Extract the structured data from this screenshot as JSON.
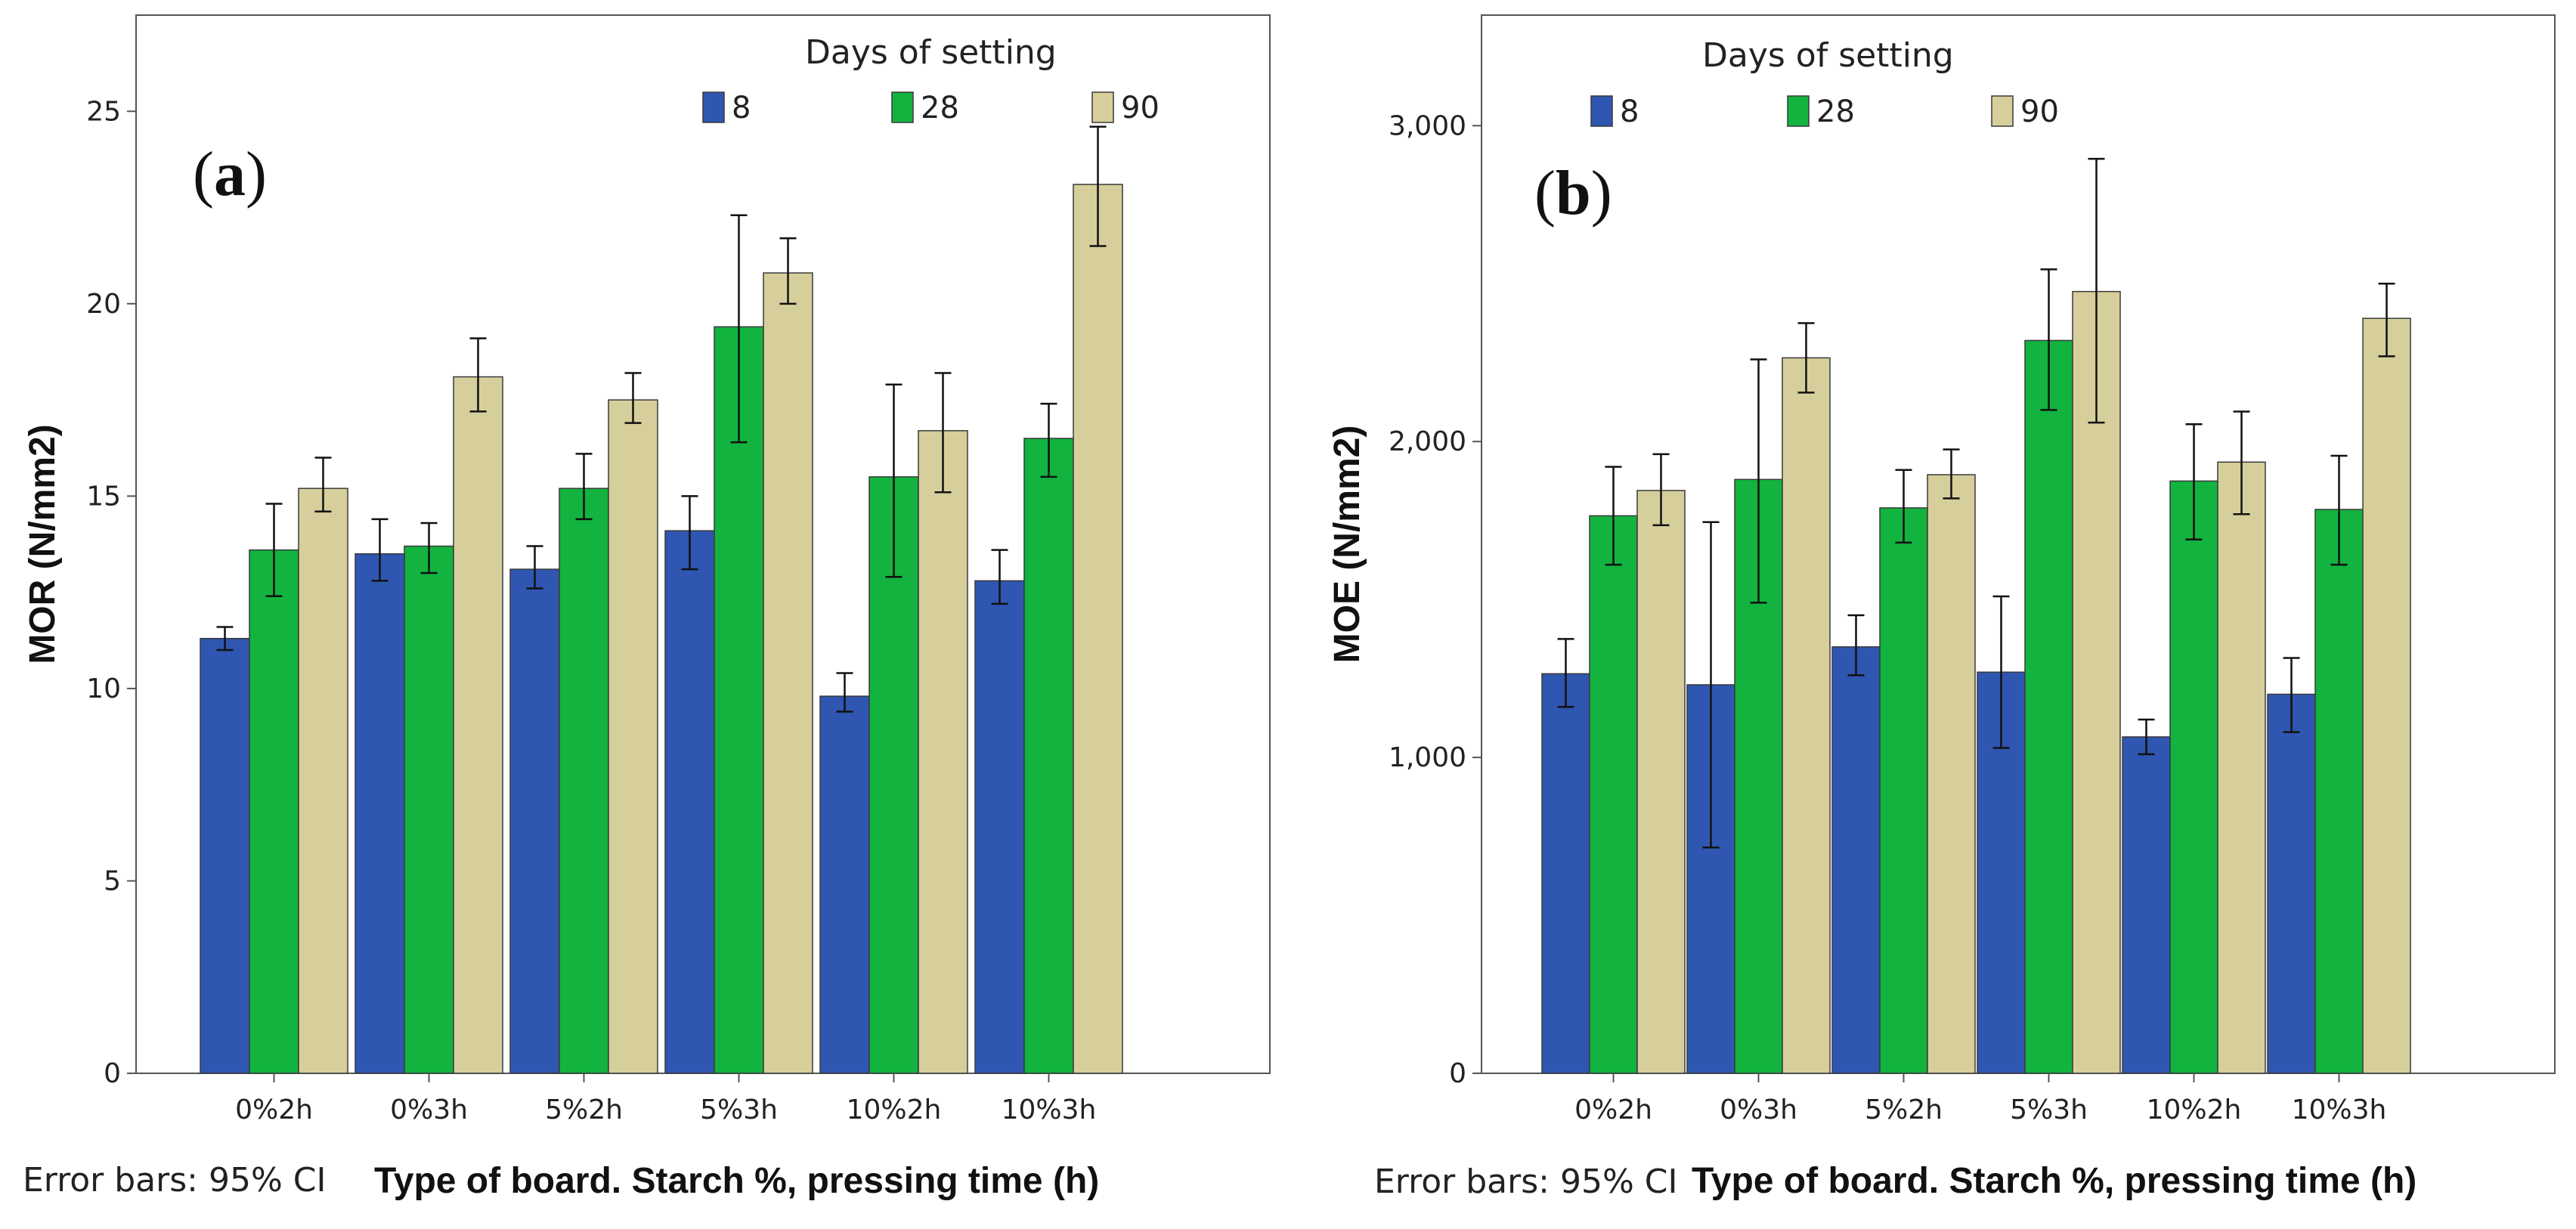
{
  "legend": {
    "title": "Days of setting",
    "colors": {
      "8": "#2f56b0",
      "28": "#12b33f",
      "90": "#d6cf9c"
    }
  },
  "footer": {
    "note": "Error bars: 95% CI",
    "xlabel": "Type of board. Starch %, pressing time (h)"
  },
  "chart_data": [
    {
      "type": "bar",
      "panel_label": "a",
      "ylabel": "MOR (N/mm2)",
      "xlabel": "Type of board. Starch %, pressing time (h)",
      "ylim": [
        0,
        27.5
      ],
      "yticks": [
        0,
        5,
        10,
        15,
        20,
        25
      ],
      "ytick_labels": [
        "0",
        "5",
        "10",
        "15",
        "20",
        "25"
      ],
      "legend_position": "top-right",
      "categories": [
        "0%2h",
        "0%3h",
        "5%2h",
        "5%3h",
        "10%2h",
        "10%3h"
      ],
      "series": [
        {
          "name": "8",
          "values": [
            11.3,
            13.5,
            13.1,
            14.1,
            9.8,
            12.8
          ],
          "ci_low": [
            11.0,
            12.8,
            12.6,
            13.1,
            9.4,
            12.2
          ],
          "ci_high": [
            11.6,
            14.4,
            13.7,
            15.0,
            10.4,
            13.6
          ]
        },
        {
          "name": "28",
          "values": [
            13.6,
            13.7,
            15.2,
            19.4,
            15.5,
            16.5
          ],
          "ci_low": [
            12.4,
            13.0,
            14.4,
            16.4,
            12.9,
            15.5
          ],
          "ci_high": [
            14.8,
            14.3,
            16.1,
            22.3,
            17.9,
            17.4
          ]
        },
        {
          "name": "90",
          "values": [
            15.2,
            18.1,
            17.5,
            20.8,
            16.7,
            23.1
          ],
          "ci_low": [
            14.6,
            17.2,
            16.9,
            20.0,
            15.1,
            21.5
          ],
          "ci_high": [
            16.0,
            19.1,
            18.2,
            21.7,
            18.2,
            24.6
          ]
        }
      ]
    },
    {
      "type": "bar",
      "panel_label": "b",
      "ylabel": "MOE (N/mm2)",
      "xlabel": "Type of board. Starch %, pressing time (h)",
      "ylim": [
        0,
        3350
      ],
      "yticks": [
        0,
        1000,
        2000,
        3000
      ],
      "ytick_labels": [
        "0",
        "1,000",
        "2,000",
        "3,000"
      ],
      "legend_position": "top-right",
      "categories": [
        "0%2h",
        "0%3h",
        "5%2h",
        "5%3h",
        "10%2h",
        "10%3h"
      ],
      "series": [
        {
          "name": "8",
          "values": [
            1265,
            1230,
            1350,
            1270,
            1065,
            1200
          ],
          "ci_low": [
            1160,
            715,
            1260,
            1030,
            1010,
            1080
          ],
          "ci_high": [
            1375,
            1745,
            1450,
            1510,
            1120,
            1315
          ]
        },
        {
          "name": "28",
          "values": [
            1765,
            1880,
            1790,
            2320,
            1875,
            1785
          ],
          "ci_low": [
            1610,
            1490,
            1680,
            2100,
            1690,
            1610
          ],
          "ci_high": [
            1920,
            2260,
            1910,
            2545,
            2055,
            1955
          ]
        },
        {
          "name": "90",
          "values": [
            1845,
            2265,
            1895,
            2475,
            1935,
            2390
          ],
          "ci_low": [
            1735,
            2155,
            1820,
            2060,
            1770,
            2270
          ],
          "ci_high": [
            1960,
            2375,
            1975,
            2895,
            2095,
            2500
          ]
        }
      ]
    }
  ]
}
